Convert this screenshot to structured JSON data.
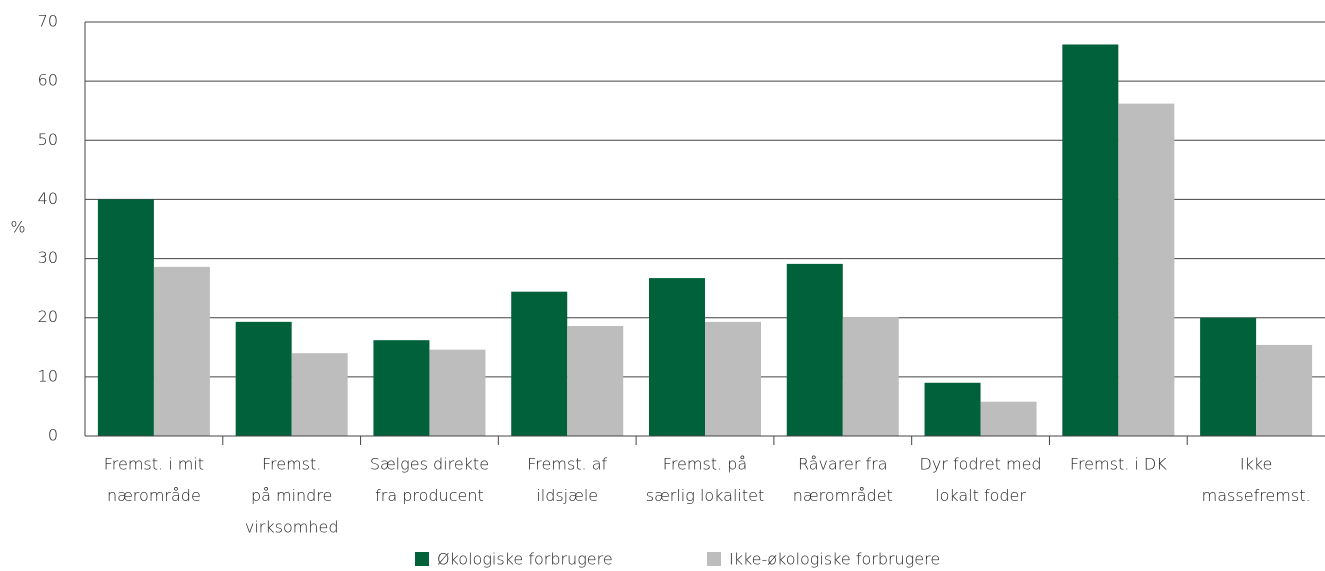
{
  "chart_data": {
    "type": "bar",
    "y_label": "%",
    "categories": [
      [
        "Fremst. i mit",
        "nærområde"
      ],
      [
        "Fremst.",
        "på mindre",
        "virksomhed"
      ],
      [
        "Sælges direkte",
        "fra producent"
      ],
      [
        "Fremst. af",
        "ildsjæle"
      ],
      [
        "Fremst. på",
        "særlig lokalitet"
      ],
      [
        "Råvarer fra",
        "nærområdet"
      ],
      [
        "Dyr fodret med",
        "lokalt foder"
      ],
      [
        "Fremst. i DK"
      ],
      [
        "Ikke",
        "massefremst."
      ]
    ],
    "series": [
      {
        "name": "Økologiske forbrugere",
        "color": "#00613a",
        "values": [
          40,
          19.3,
          16.2,
          24.4,
          26.7,
          29.1,
          9,
          66.2,
          20
        ]
      },
      {
        "name": "Ikke-økologiske forbrugere",
        "color": "#bdbdbd",
        "values": [
          28.6,
          14,
          14.6,
          18.6,
          19.3,
          20.1,
          5.8,
          56.2,
          15.4
        ]
      }
    ],
    "ylim": [
      0,
      70
    ],
    "yticks": [
      0,
      10,
      20,
      30,
      40,
      50,
      60,
      70
    ],
    "grid": true
  }
}
